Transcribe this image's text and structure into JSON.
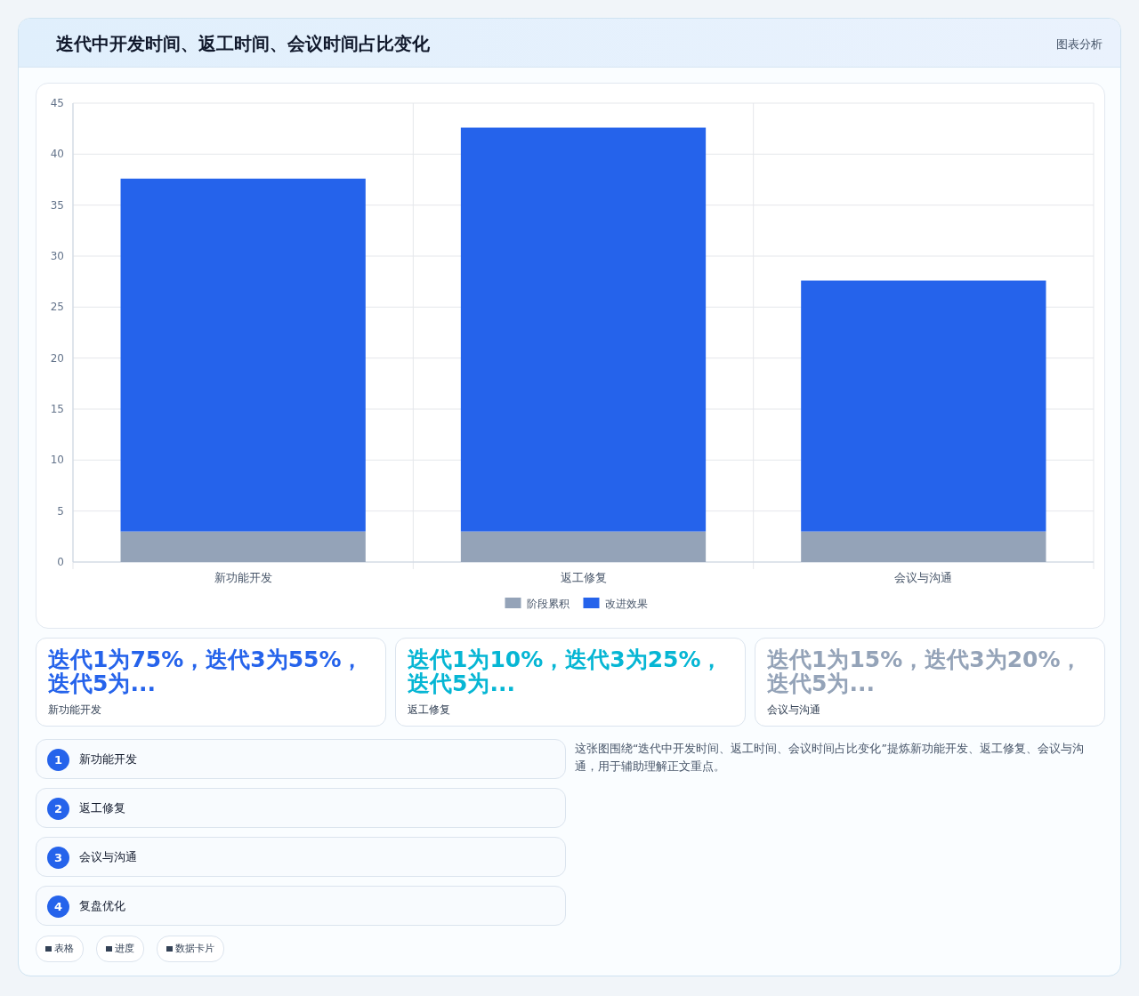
{
  "chart_data": {
    "type": "bar",
    "title": "迭代中开发时间、返工时间、会议时间占比变化",
    "categories": [
      "新功能开发",
      "返工修复",
      "会议与沟通"
    ],
    "series": [
      {
        "name": "阶段累积",
        "color": "#94a3b8",
        "values": [
          3,
          3,
          3
        ]
      },
      {
        "name": "改进效果",
        "color": "#2563eb",
        "values": [
          34.6,
          39.6,
          24.6
        ]
      }
    ],
    "stacked": true,
    "ylim": [
      0,
      45
    ],
    "yticks": [
      0,
      5,
      10,
      15,
      20,
      25,
      30,
      35,
      40,
      45
    ],
    "grid": true,
    "legend": "bottom",
    "annotations": [
      "图表分析",
      "迭代1为75%，迭代3为55%，迭代5为...",
      "迭代1为10%，迭代3为25%，迭代5为...",
      "迭代1为15%，迭代3为20%，迭代5为...",
      "新功能开发",
      "返工修复",
      "会议与沟通",
      "1",
      "新功能开发",
      "2",
      "返工修复",
      "3",
      "会议与沟通",
      "4",
      "复盘优化",
      "这张图围绕“迭代中开发时间、返工时间、会议时间占比变化”提炼新功能开发、返工修复、会议与沟通，用于辅助理解正文重点。",
      "表格",
      "进度",
      "数据卡片"
    ]
  }
}
